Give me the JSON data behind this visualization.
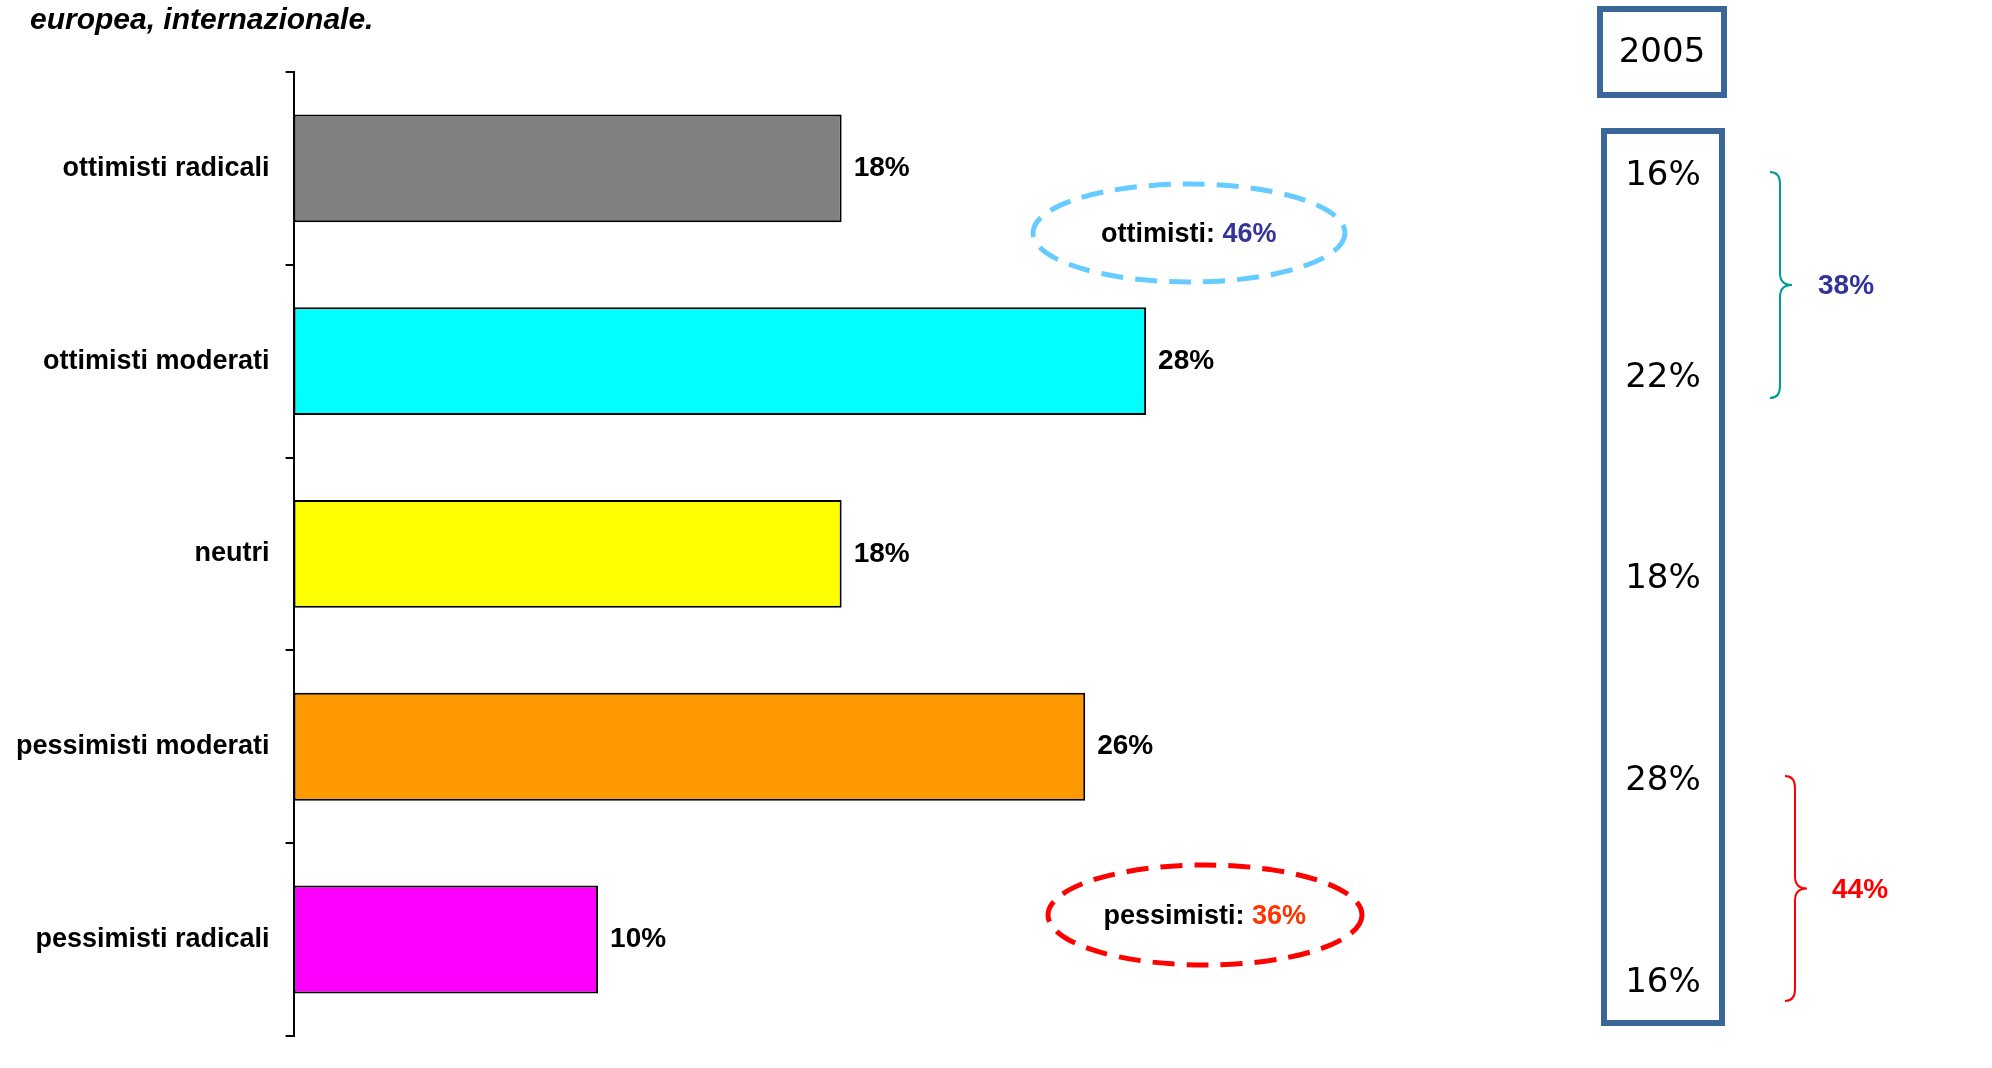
{
  "chart_data": {
    "type": "bar",
    "orientation": "horizontal",
    "title": "europea, internazionale.",
    "categories": [
      "ottimisti radicali",
      "ottimisti moderati",
      "neutri",
      "pessimisti moderati",
      "pessimisti radicali"
    ],
    "values": [
      18,
      28,
      18,
      26,
      10
    ],
    "colors": [
      "#808080",
      "#00ffff",
      "#ffff00",
      "#ff9900",
      "#ff00ff"
    ],
    "value_labels": [
      "18%",
      "28%",
      "18%",
      "26%",
      "10%"
    ],
    "legend": false,
    "annotations": [
      "ottimisti: 46%",
      "pessimisti: 36%",
      "2005",
      "16%",
      "22%",
      "18%",
      "28%",
      "16%",
      "38%",
      "44%"
    ]
  }
}
